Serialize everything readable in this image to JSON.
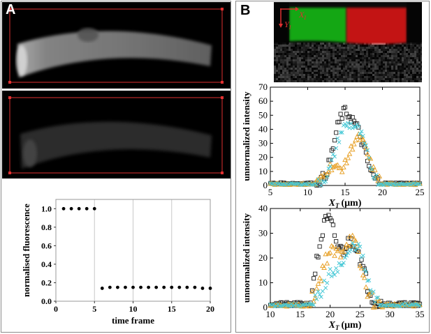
{
  "panels": {
    "a": {
      "label": "A"
    },
    "b": {
      "label": "B"
    }
  },
  "micrograph_axes": {
    "x_label": "X",
    "x_sub": "I",
    "y_label": "Y",
    "y_sub": "I"
  },
  "colors": {
    "black_series": "#222222",
    "cyan_series": "#46c8d6",
    "orange_series": "#e8a22a",
    "roi_red": "#e03030",
    "green_channel": "#1ec81e",
    "red_channel": "#e01010"
  },
  "chart_data": [
    {
      "type": "scatter",
      "xlabel": "time frame",
      "ylabel": "normalised fluorescence",
      "xlim": [
        0,
        20
      ],
      "ylim": [
        0,
        1.1
      ],
      "xticks": [
        0,
        5,
        10,
        15,
        20
      ],
      "yticks": [
        0.0,
        0.2,
        0.4,
        0.6,
        0.8,
        1.0
      ],
      "grid": "vertical",
      "x": [
        1,
        2,
        3,
        4,
        5,
        6,
        7,
        8,
        9,
        10,
        11,
        12,
        13,
        14,
        15,
        16,
        17,
        18,
        19,
        20
      ],
      "values": [
        1.0,
        1.0,
        1.0,
        1.0,
        1.0,
        0.14,
        0.15,
        0.15,
        0.15,
        0.15,
        0.15,
        0.15,
        0.15,
        0.15,
        0.15,
        0.15,
        0.15,
        0.15,
        0.14,
        0.14
      ]
    },
    {
      "type": "scatter",
      "xlabel": "X",
      "xlabel_sub": "T",
      "xlabel_unit": "(μm)",
      "ylabel": "unnormalized intensity",
      "xlim": [
        5,
        25
      ],
      "ylim": [
        0,
        70
      ],
      "xticks": [
        5,
        10,
        15,
        20,
        25
      ],
      "yticks": [
        0,
        10,
        20,
        30,
        40,
        50,
        60,
        70
      ],
      "profile_params": [
        {
          "marker": "square",
          "color": "#222222",
          "base": 1.5,
          "peaks": [
            [
              14.6,
              1.15,
              44
            ],
            [
              16.7,
              1.1,
              30
            ]
          ],
          "edge": [
            11.0,
            19.5
          ],
          "noise": 4
        },
        {
          "marker": "cross",
          "color": "#46c8d6",
          "base": 1.0,
          "peaks": [
            [
              14.8,
              1.2,
              36
            ],
            [
              17.0,
              1.1,
              30
            ]
          ],
          "edge": [
            11.2,
            19.2
          ],
          "noise": 3.5
        },
        {
          "marker": "triangle",
          "color": "#e8a22a",
          "base": 1.0,
          "peaks": [
            [
              13.2,
              0.9,
              12
            ],
            [
              16.8,
              1.3,
              33
            ]
          ],
          "edge": [
            11.0,
            19.6
          ],
          "noise": 3
        }
      ],
      "x_step": 0.2
    },
    {
      "type": "scatter",
      "xlabel": "X",
      "xlabel_sub": "T",
      "xlabel_unit": "(μm)",
      "ylabel": "unnormalized intensity",
      "xlim": [
        10,
        35
      ],
      "ylim": [
        0,
        40
      ],
      "xticks": [
        10,
        15,
        20,
        25,
        30,
        35
      ],
      "yticks": [
        0,
        10,
        20,
        30,
        40
      ],
      "profile_params": [
        {
          "marker": "square",
          "color": "#222222",
          "base": 1.5,
          "peaks": [
            [
              19.5,
              1.5,
              33
            ],
            [
              23.8,
              1.6,
              25
            ]
          ],
          "edge": [
            17.0,
            28.5
          ],
          "noise": 3
        },
        {
          "marker": "cross",
          "color": "#46c8d6",
          "base": 1.0,
          "peaks": [
            [
              21.0,
              1.8,
              14
            ],
            [
              24.5,
              1.4,
              22
            ]
          ],
          "edge": [
            17.5,
            28.0
          ],
          "noise": 2.5
        },
        {
          "marker": "triangle",
          "color": "#e8a22a",
          "base": 1.0,
          "peaks": [
            [
              19.8,
              1.4,
              19
            ],
            [
              23.5,
              1.6,
              26
            ]
          ],
          "edge": [
            17.0,
            28.8
          ],
          "noise": 3
        }
      ],
      "x_step": 0.25
    }
  ]
}
